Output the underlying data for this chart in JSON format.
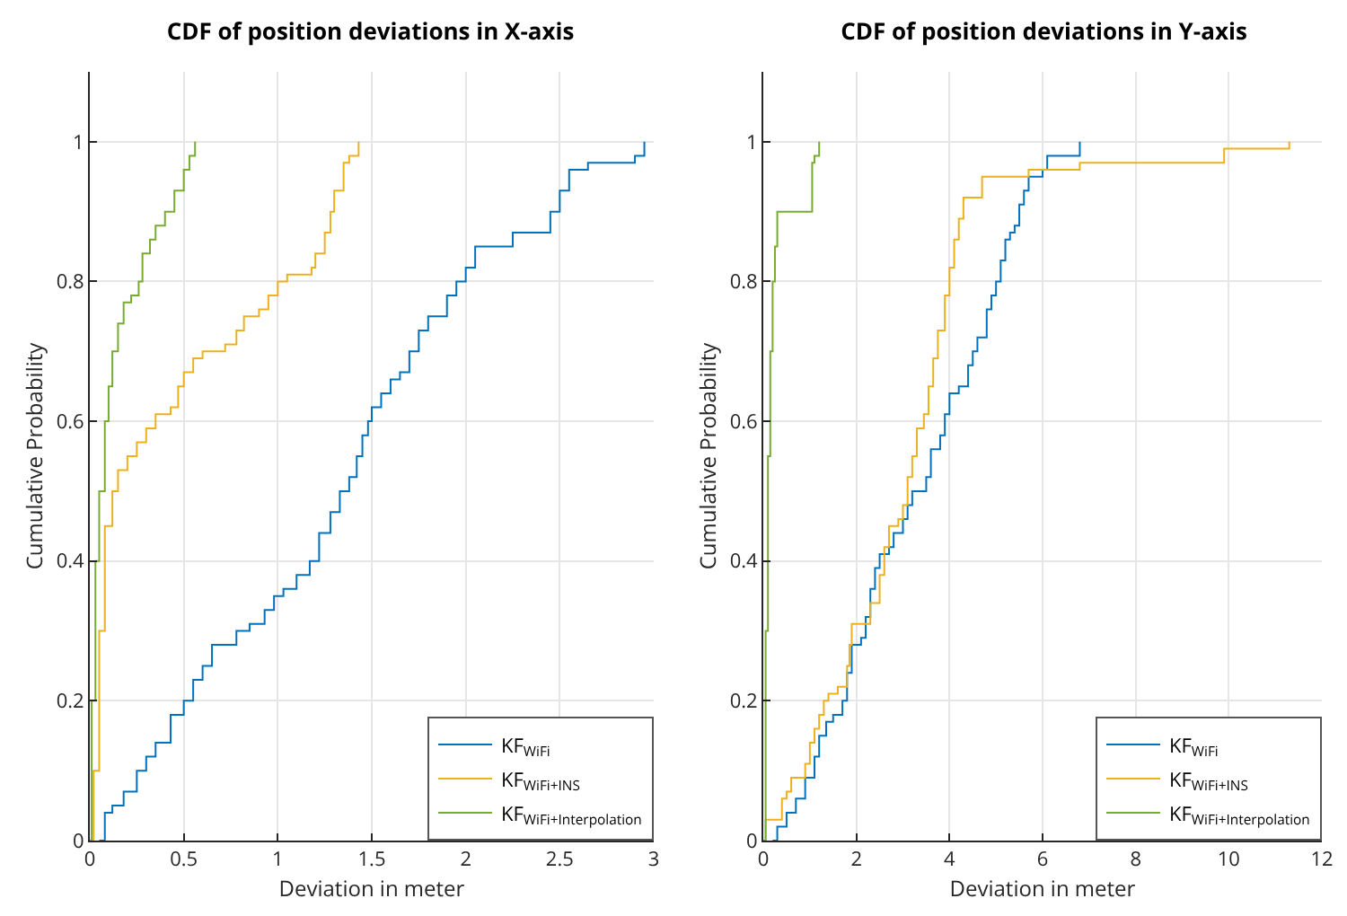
{
  "chart_data": [
    {
      "type": "step",
      "title": "CDF of position deviations in X-axis",
      "xlabel": "Deviation in meter",
      "ylabel": "Cumulative Probability",
      "xlim": [
        0,
        3
      ],
      "xticks": [
        0,
        0.5,
        1,
        1.5,
        2,
        2.5,
        3
      ],
      "ylim": [
        0,
        1.1
      ],
      "yticks": [
        0,
        0.2,
        0.4,
        0.6,
        0.8,
        1
      ],
      "grid": true,
      "legend": "bottom right",
      "series": [
        {
          "name": "KF$_{WiFi}$",
          "color": "#0072bd",
          "x": [
            0.05,
            0.08,
            0.12,
            0.18,
            0.25,
            0.3,
            0.35,
            0.43,
            0.5,
            0.55,
            0.6,
            0.65,
            0.78,
            0.85,
            0.93,
            0.98,
            1.03,
            1.1,
            1.17,
            1.22,
            1.28,
            1.33,
            1.38,
            1.42,
            1.45,
            1.48,
            1.5,
            1.55,
            1.6,
            1.65,
            1.7,
            1.75,
            1.8,
            1.9,
            1.95,
            2.0,
            2.05,
            2.07,
            2.25,
            2.45,
            2.5,
            2.55,
            2.65,
            2.9,
            2.95
          ],
          "values": [
            0,
            0.04,
            0.05,
            0.07,
            0.1,
            0.12,
            0.14,
            0.18,
            0.2,
            0.23,
            0.25,
            0.28,
            0.3,
            0.31,
            0.33,
            0.35,
            0.36,
            0.38,
            0.4,
            0.44,
            0.47,
            0.5,
            0.52,
            0.55,
            0.58,
            0.6,
            0.62,
            0.64,
            0.66,
            0.67,
            0.7,
            0.73,
            0.75,
            0.78,
            0.8,
            0.82,
            0.85,
            0.85,
            0.87,
            0.9,
            0.93,
            0.96,
            0.97,
            0.98,
            1.0
          ]
        },
        {
          "name": "KF$_{WiFi+INS}$",
          "color": "#edb120",
          "x": [
            0,
            0.02,
            0.05,
            0.08,
            0.12,
            0.15,
            0.2,
            0.25,
            0.3,
            0.35,
            0.43,
            0.47,
            0.5,
            0.55,
            0.6,
            0.72,
            0.78,
            0.82,
            0.9,
            0.95,
            1.0,
            1.05,
            1.18,
            1.2,
            1.25,
            1.28,
            1.3,
            1.35,
            1.38,
            1.43
          ],
          "values": [
            0,
            0.1,
            0.3,
            0.45,
            0.5,
            0.53,
            0.55,
            0.57,
            0.59,
            0.61,
            0.62,
            0.65,
            0.67,
            0.69,
            0.7,
            0.71,
            0.73,
            0.75,
            0.76,
            0.78,
            0.8,
            0.81,
            0.82,
            0.84,
            0.87,
            0.9,
            0.93,
            0.97,
            0.98,
            1.0
          ]
        },
        {
          "name": "KF$_{WiFi+Interpolation}$",
          "color": "#77ac30",
          "x": [
            0,
            0.01,
            0.03,
            0.05,
            0.08,
            0.1,
            0.12,
            0.15,
            0.18,
            0.22,
            0.26,
            0.28,
            0.32,
            0.35,
            0.4,
            0.45,
            0.5,
            0.53,
            0.56
          ],
          "values": [
            0,
            0.2,
            0.4,
            0.5,
            0.6,
            0.65,
            0.7,
            0.74,
            0.77,
            0.78,
            0.8,
            0.84,
            0.86,
            0.88,
            0.9,
            0.93,
            0.96,
            0.98,
            1.0
          ]
        }
      ]
    },
    {
      "type": "step",
      "title": "CDF of position deviations in Y-axis",
      "xlabel": "Deviation in meter",
      "ylabel": "Cumulative Probability",
      "xlim": [
        0,
        12
      ],
      "xticks": [
        0,
        2,
        4,
        6,
        8,
        10,
        12
      ],
      "ylim": [
        0,
        1.1
      ],
      "yticks": [
        0,
        0.2,
        0.4,
        0.6,
        0.8,
        1
      ],
      "grid": true,
      "legend": "bottom right",
      "series": [
        {
          "name": "KF$_{WiFi}$",
          "color": "#0072bd",
          "x": [
            0.2,
            0.3,
            0.5,
            0.7,
            0.9,
            1.1,
            1.2,
            1.35,
            1.5,
            1.7,
            1.8,
            1.9,
            2.1,
            2.2,
            2.3,
            2.4,
            2.5,
            2.7,
            2.8,
            3.0,
            3.1,
            3.2,
            3.5,
            3.6,
            3.8,
            3.9,
            4.0,
            4.2,
            4.4,
            4.5,
            4.6,
            4.8,
            4.9,
            5.0,
            5.1,
            5.2,
            5.3,
            5.4,
            5.5,
            5.6,
            5.7,
            6.0,
            6.1,
            6.8
          ],
          "values": [
            0,
            0.02,
            0.04,
            0.06,
            0.09,
            0.12,
            0.15,
            0.17,
            0.18,
            0.2,
            0.24,
            0.28,
            0.29,
            0.32,
            0.36,
            0.39,
            0.41,
            0.42,
            0.44,
            0.46,
            0.48,
            0.5,
            0.52,
            0.56,
            0.58,
            0.61,
            0.64,
            0.65,
            0.68,
            0.7,
            0.72,
            0.76,
            0.78,
            0.8,
            0.83,
            0.86,
            0.87,
            0.88,
            0.91,
            0.93,
            0.95,
            0.96,
            0.98,
            1.0
          ]
        },
        {
          "name": "KF$_{WiFi+INS}$",
          "color": "#edb120",
          "x": [
            0,
            0.05,
            0.4,
            0.5,
            0.6,
            0.9,
            1.0,
            1.1,
            1.2,
            1.3,
            1.4,
            1.6,
            1.8,
            1.85,
            1.9,
            2.3,
            2.5,
            2.6,
            2.7,
            2.9,
            3.0,
            3.1,
            3.2,
            3.3,
            3.45,
            3.55,
            3.65,
            3.75,
            3.9,
            4.0,
            4.1,
            4.2,
            4.3,
            4.7,
            5.7,
            6.8,
            9.9,
            11.3
          ],
          "values": [
            0,
            0.03,
            0.06,
            0.07,
            0.09,
            0.11,
            0.14,
            0.16,
            0.18,
            0.2,
            0.21,
            0.22,
            0.25,
            0.28,
            0.31,
            0.34,
            0.38,
            0.42,
            0.45,
            0.46,
            0.48,
            0.52,
            0.55,
            0.59,
            0.61,
            0.65,
            0.69,
            0.73,
            0.78,
            0.82,
            0.86,
            0.89,
            0.92,
            0.95,
            0.96,
            0.97,
            0.99,
            1.0
          ]
        },
        {
          "name": "KF$_{WiFi+Interpolation}$",
          "color": "#77ac30",
          "x": [
            0,
            0.05,
            0.1,
            0.15,
            0.2,
            0.25,
            0.3,
            1.05,
            1.1,
            1.2
          ],
          "values": [
            0,
            0.3,
            0.55,
            0.7,
            0.8,
            0.85,
            0.9,
            0.97,
            0.98,
            1.0
          ]
        }
      ]
    }
  ]
}
